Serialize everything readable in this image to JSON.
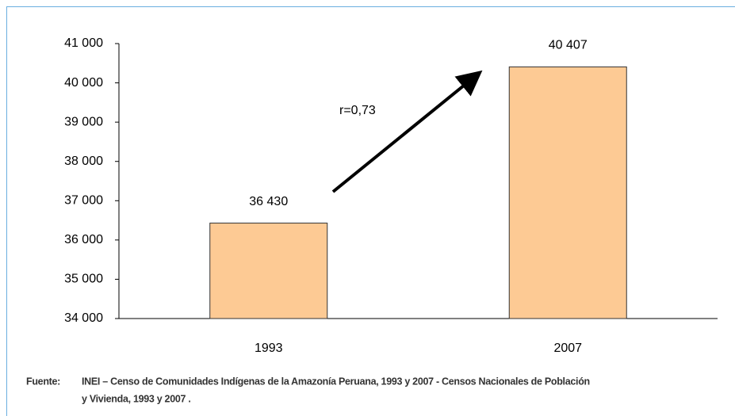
{
  "chart_data": {
    "type": "bar",
    "categories": [
      "1993",
      "2007"
    ],
    "values": [
      36430,
      40407
    ],
    "value_labels": [
      "36 430",
      "40 407"
    ],
    "color": "#fdca94",
    "ylim": [
      34000,
      41000
    ],
    "yticks": [
      {
        "value": 34000,
        "label": "34 000"
      },
      {
        "value": 35000,
        "label": "35 000"
      },
      {
        "value": 36000,
        "label": "36 000"
      },
      {
        "value": 37000,
        "label": "37 000"
      },
      {
        "value": 38000,
        "label": "38 000"
      },
      {
        "value": 39000,
        "label": "39 000"
      },
      {
        "value": 40000,
        "label": "40 000"
      },
      {
        "value": 41000,
        "label": "41 000"
      }
    ],
    "grid": false,
    "annotation": "r=0,73",
    "source_label": "Fuente:",
    "source_lines": [
      "INEI – Censo de Comunidades Indígenas de la Amazonía Peruana, 1993 y 2007 - Censos Nacionales de Población",
      "y Vivienda, 1993 y 2007 ."
    ]
  }
}
